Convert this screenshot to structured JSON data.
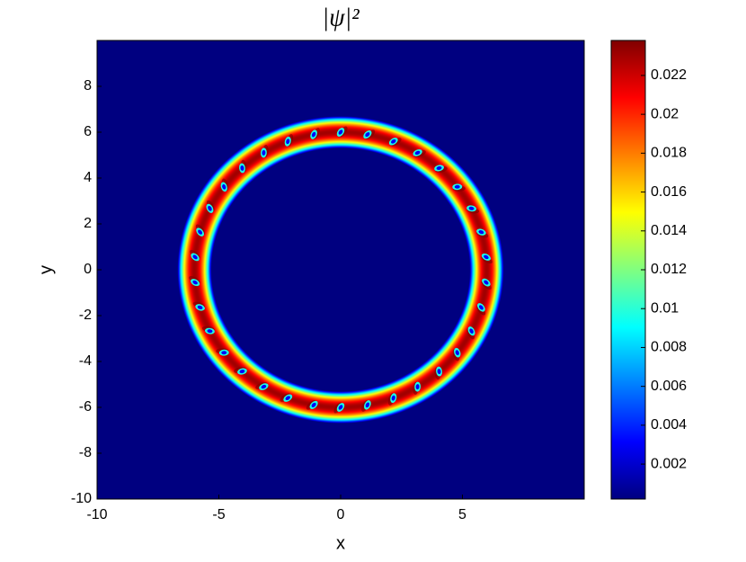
{
  "chart_data": {
    "type": "heatmap",
    "title": "|ψ|²",
    "x_label": "x",
    "y_label": "y",
    "xlim": [
      -10,
      10
    ],
    "xticks": [
      -10,
      -5,
      0,
      5
    ],
    "ylim": [
      -10,
      10
    ],
    "yticks": [
      -10,
      -8,
      -6,
      -4,
      -2,
      0,
      2,
      4,
      6,
      8
    ],
    "colormap": "jet",
    "clim": [
      0.0002,
      0.0238
    ],
    "cticks": [
      0.002,
      0.004,
      0.006,
      0.008,
      0.01,
      0.012,
      0.014,
      0.016,
      0.018,
      0.02,
      0.022
    ],
    "ring": {
      "radius": 6,
      "half_width": 0.7,
      "peak": 0.023
    },
    "vortices": {
      "count": 34,
      "radius": 6
    }
  }
}
